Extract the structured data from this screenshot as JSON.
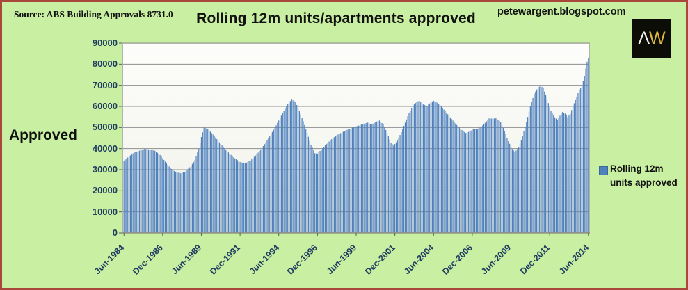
{
  "header": {
    "source_label": "Source: ABS Building Approvals 8731.0",
    "title": "Rolling 12m units/apartments approved",
    "site_url": "petewargent.blogspot.com",
    "logo": {
      "caret": "Λ",
      "w": "W"
    }
  },
  "y_axis_side_label": "Approved",
  "legend": {
    "label": "Rolling 12m units approved"
  },
  "chart_data": {
    "type": "bar",
    "title": "Rolling 12m units/apartments approved",
    "series_name": "Rolling 12m units approved",
    "x_frequency": "monthly",
    "x_start": "Jun-1984",
    "x_end": "Jun-2014",
    "x_total_months": 360,
    "x_tick_labels": [
      "Jun-1984",
      "Dec-1986",
      "Jun-1989",
      "Dec-1991",
      "Jun-1994",
      "Dec-1996",
      "Jun-1999",
      "Dec-2001",
      "Jun-2004",
      "Dec-2006",
      "Jun-2009",
      "Dec-2011",
      "Jun-2014"
    ],
    "x_tick_month_indices": [
      0,
      30,
      60,
      90,
      120,
      150,
      180,
      210,
      240,
      270,
      300,
      330,
      360
    ],
    "ylim": [
      0,
      90000
    ],
    "y_tick_step": 10000,
    "grid": true,
    "legend_position": "right",
    "interpolation_note": "monthly bar values are linearly interpolated between anchor_points; month_index 0 = Jun-1984, 360 = Jun-2014",
    "anchor_points": [
      [
        0,
        34300
      ],
      [
        4,
        36300
      ],
      [
        8,
        38200
      ],
      [
        12,
        39000
      ],
      [
        16,
        39900
      ],
      [
        20,
        39500
      ],
      [
        24,
        39000
      ],
      [
        28,
        37000
      ],
      [
        32,
        33800
      ],
      [
        36,
        30800
      ],
      [
        40,
        28900
      ],
      [
        44,
        28300
      ],
      [
        48,
        29200
      ],
      [
        52,
        31800
      ],
      [
        55,
        34500
      ],
      [
        58,
        40000
      ],
      [
        60,
        45500
      ],
      [
        62,
        49900
      ],
      [
        65,
        49400
      ],
      [
        70,
        46000
      ],
      [
        75,
        42200
      ],
      [
        80,
        38800
      ],
      [
        85,
        35800
      ],
      [
        90,
        33600
      ],
      [
        94,
        33000
      ],
      [
        98,
        34300
      ],
      [
        103,
        37300
      ],
      [
        108,
        41200
      ],
      [
        113,
        45800
      ],
      [
        118,
        51000
      ],
      [
        123,
        56800
      ],
      [
        127,
        61000
      ],
      [
        130,
        63300
      ],
      [
        133,
        62000
      ],
      [
        136,
        58000
      ],
      [
        139,
        53000
      ],
      [
        142,
        47500
      ],
      [
        145,
        41800
      ],
      [
        148,
        37800
      ],
      [
        150,
        37600
      ],
      [
        154,
        40200
      ],
      [
        158,
        42800
      ],
      [
        162,
        45000
      ],
      [
        166,
        46700
      ],
      [
        170,
        48000
      ],
      [
        174,
        49200
      ],
      [
        178,
        50100
      ],
      [
        182,
        50900
      ],
      [
        186,
        51800
      ],
      [
        189,
        52300
      ],
      [
        192,
        51400
      ],
      [
        195,
        52600
      ],
      [
        198,
        53300
      ],
      [
        201,
        51500
      ],
      [
        204,
        47500
      ],
      [
        207,
        42800
      ],
      [
        209,
        41400
      ],
      [
        212,
        43800
      ],
      [
        215,
        47800
      ],
      [
        218,
        52300
      ],
      [
        221,
        56800
      ],
      [
        224,
        60300
      ],
      [
        227,
        62300
      ],
      [
        229,
        62600
      ],
      [
        232,
        60900
      ],
      [
        235,
        60300
      ],
      [
        238,
        62000
      ],
      [
        240,
        62700
      ],
      [
        243,
        61800
      ],
      [
        246,
        60000
      ],
      [
        250,
        57000
      ],
      [
        254,
        54000
      ],
      [
        258,
        51200
      ],
      [
        262,
        48800
      ],
      [
        265,
        47400
      ],
      [
        268,
        48100
      ],
      [
        271,
        49500
      ],
      [
        274,
        49300
      ],
      [
        277,
        50300
      ],
      [
        280,
        52200
      ],
      [
        283,
        54300
      ],
      [
        286,
        54200
      ],
      [
        289,
        54400
      ],
      [
        292,
        52500
      ],
      [
        295,
        48500
      ],
      [
        298,
        43500
      ],
      [
        301,
        39800
      ],
      [
        303,
        38400
      ],
      [
        306,
        40500
      ],
      [
        309,
        46000
      ],
      [
        312,
        52500
      ],
      [
        315,
        60000
      ],
      [
        318,
        66000
      ],
      [
        321,
        69000
      ],
      [
        323,
        69700
      ],
      [
        325,
        68800
      ],
      [
        328,
        63500
      ],
      [
        331,
        57800
      ],
      [
        334,
        54800
      ],
      [
        336,
        53600
      ],
      [
        338,
        55600
      ],
      [
        340,
        57400
      ],
      [
        342,
        56600
      ],
      [
        344,
        54900
      ],
      [
        346,
        56500
      ],
      [
        348,
        60000
      ],
      [
        351,
        64500
      ],
      [
        353,
        68000
      ],
      [
        355,
        69600
      ],
      [
        357,
        74500
      ],
      [
        358,
        78000
      ],
      [
        359,
        81200
      ],
      [
        360,
        82800
      ]
    ],
    "colors": {
      "bar": "#4f81bd",
      "page_background": "#c9f0a2",
      "page_border": "#a8473a",
      "axis_text": "#1f3c61",
      "gridline": "#8f8f8f",
      "plot_border": "#b3b3ad",
      "plot_bg_top": "#fdfdfb",
      "plot_bg_bottom": "#e9ece1",
      "legend_marker": "#4f81bd",
      "logo_bg": "#0d0d08",
      "logo_caret": "#f4f2ea",
      "logo_w": "#d9b93f"
    }
  }
}
